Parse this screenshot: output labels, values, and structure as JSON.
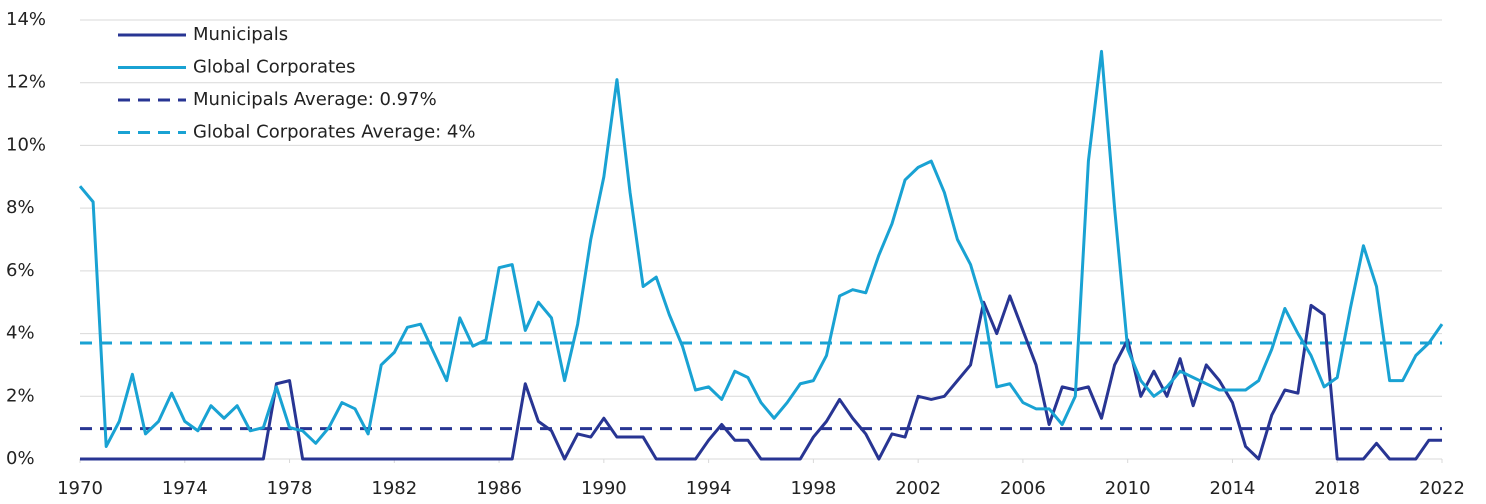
{
  "chart_data": {
    "type": "line",
    "x": [
      1970,
      1970.5,
      1971,
      1971.5,
      1972,
      1972.5,
      1973,
      1973.5,
      1974,
      1974.5,
      1975,
      1975.5,
      1976,
      1976.5,
      1977,
      1977.5,
      1978,
      1978.5,
      1979,
      1979.5,
      1980,
      1980.5,
      1981,
      1981.5,
      1982,
      1982.5,
      1983,
      1983.5,
      1984,
      1984.5,
      1985,
      1985.5,
      1986,
      1986.5,
      1987,
      1987.5,
      1988,
      1988.5,
      1989,
      1989.5,
      1990,
      1990.5,
      1991,
      1991.5,
      1992,
      1992.5,
      1993,
      1993.5,
      1994,
      1994.5,
      1995,
      1995.5,
      1996,
      1996.5,
      1997,
      1997.5,
      1998,
      1998.5,
      1999,
      1999.5,
      2000,
      2000.5,
      2001,
      2001.5,
      2002,
      2002.5,
      2003,
      2003.5,
      2004,
      2004.5,
      2005,
      2005.5,
      2006,
      2006.5,
      2007,
      2007.5,
      2008,
      2008.5,
      2009,
      2009.5,
      2010,
      2010.5,
      2011,
      2011.5,
      2012,
      2012.5,
      2013,
      2013.5,
      2014,
      2014.5,
      2015,
      2015.5,
      2016,
      2016.5,
      2017,
      2017.5,
      2018,
      2018.5,
      2019,
      2019.5,
      2020,
      2020.5,
      2021,
      2021.5,
      2022
    ],
    "series": [
      {
        "name": "Municipals",
        "color": "#283593",
        "values": [
          0,
          0,
          0,
          0,
          0,
          0,
          0,
          0,
          0,
          0,
          0,
          0,
          0,
          0,
          0,
          2.4,
          2.5,
          0,
          0,
          0,
          0,
          0,
          0,
          0,
          0,
          0,
          0,
          0,
          0,
          0,
          0,
          0,
          0,
          0,
          2.4,
          1.2,
          0.9,
          0,
          0.8,
          0.7,
          1.3,
          0.7,
          0.7,
          0.7,
          0,
          0,
          0,
          0,
          0.6,
          1.1,
          0.6,
          0.6,
          0,
          0,
          0,
          0,
          0.7,
          1.2,
          1.9,
          1.3,
          0.8,
          0,
          0.8,
          0.7,
          2.0,
          1.9,
          2.0,
          2.5,
          3.0,
          5.0,
          4.0,
          5.2,
          4.1,
          3.0,
          1.1,
          2.3,
          2.2,
          2.3,
          1.3,
          3.0,
          3.8,
          2.0,
          2.8,
          2.0,
          3.2,
          1.7,
          3.0,
          2.5,
          1.8,
          0.4,
          0,
          1.4,
          2.2,
          2.1,
          4.9,
          4.6,
          0,
          0,
          0,
          0.5,
          0,
          0,
          0,
          0.6,
          0.6
        ]
      },
      {
        "name": "Global Corporates",
        "color": "#19a2d3",
        "values": [
          8.7,
          8.2,
          0.4,
          1.2,
          2.7,
          0.8,
          1.2,
          2.1,
          1.2,
          0.9,
          1.7,
          1.3,
          1.7,
          0.9,
          1.0,
          2.3,
          1.0,
          0.9,
          0.5,
          1.0,
          1.8,
          1.6,
          0.8,
          3.0,
          3.4,
          4.2,
          4.3,
          3.4,
          2.5,
          4.5,
          3.6,
          3.8,
          6.1,
          6.2,
          4.1,
          5.0,
          4.5,
          2.5,
          4.3,
          7.0,
          9.0,
          12.1,
          8.5,
          5.5,
          5.8,
          4.6,
          3.6,
          2.2,
          2.3,
          1.9,
          2.8,
          2.6,
          1.8,
          1.3,
          1.8,
          2.4,
          2.5,
          3.3,
          5.2,
          5.4,
          5.3,
          6.5,
          7.5,
          8.9,
          9.3,
          9.5,
          8.5,
          7.0,
          6.2,
          4.8,
          2.3,
          2.4,
          1.8,
          1.6,
          1.6,
          1.1,
          2.0,
          9.5,
          13.0,
          8.0,
          3.5,
          2.5,
          2.0,
          2.3,
          2.8,
          2.6,
          2.4,
          2.2,
          2.2,
          2.2,
          2.5,
          3.5,
          4.8,
          4.0,
          3.3,
          2.3,
          2.6,
          4.8,
          6.8,
          5.5,
          2.5,
          2.5,
          3.3,
          3.7,
          4.3
        ]
      }
    ],
    "reference_lines": [
      {
        "name": "Municipals Average: 0.97%",
        "value": 0.97,
        "color": "#283593",
        "dashed": true
      },
      {
        "name": "Global Corporates Average: 4%",
        "value": 3.7,
        "color": "#19a2d3",
        "dashed": true
      }
    ],
    "xlim": [
      1970,
      2022
    ],
    "xticks": [
      1970,
      1974,
      1978,
      1982,
      1986,
      1990,
      1994,
      1998,
      2002,
      2006,
      2010,
      2014,
      2018,
      2022
    ],
    "ylim": [
      0,
      14
    ],
    "yticks": [
      {
        "value": 0,
        "label": "0%"
      },
      {
        "value": 2,
        "label": "2%"
      },
      {
        "value": 4,
        "label": "4%"
      },
      {
        "value": 6,
        "label": "6%"
      },
      {
        "value": 8,
        "label": "8%"
      },
      {
        "value": 10,
        "label": "10%"
      },
      {
        "value": 12,
        "label": "12%"
      },
      {
        "value": 14,
        "label": "14%"
      }
    ],
    "grid": true,
    "legend": "top-left"
  }
}
